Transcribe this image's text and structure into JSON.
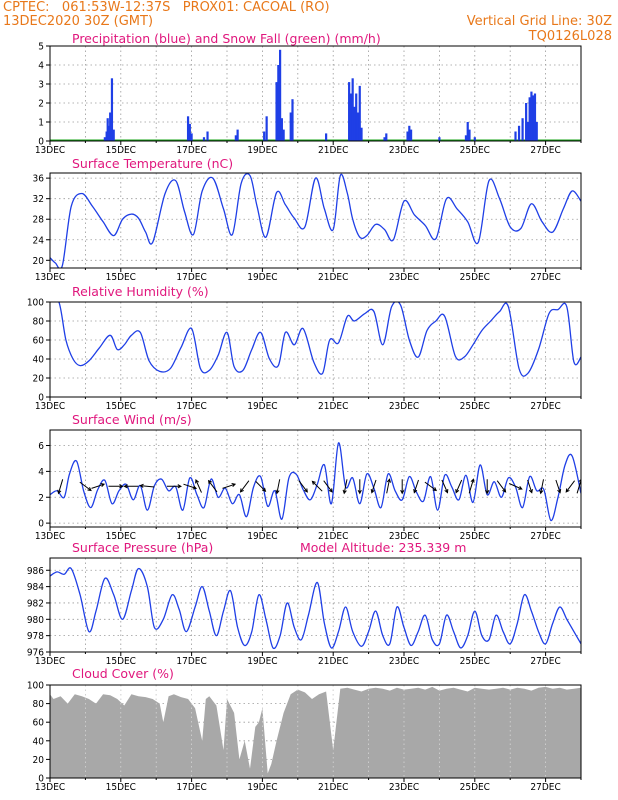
{
  "header": {
    "line1": "CPTEC:   061:53W-12:37S   PROX01: CACOAL (RO)",
    "line2_left": "13DEC2020 30Z (GMT)",
    "line2_right": "Vertical Grid Line: 30Z",
    "line3_right": "TQ0126L028"
  },
  "colors": {
    "header": "#e8781a",
    "panel_title": "#e0177d",
    "line": "#1f3fe6",
    "snow": "#19a619",
    "cloud": "#a8a8a8",
    "arrow": "#000000"
  },
  "chart_data": [
    {
      "id": "precip",
      "type": "bar",
      "title": "Precipitation (blue) and Snow Fall (green) (mm/h)",
      "x_labels": [
        "13DEC",
        "15DEC",
        "17DEC",
        "19DEC",
        "21DEC",
        "23DEC",
        "25DEC",
        "27DEC"
      ],
      "x_label_days": [
        0,
        2,
        4,
        6,
        8,
        10,
        12,
        14
      ],
      "ylim": [
        0,
        5
      ],
      "yticks": [
        0,
        1,
        2,
        3,
        4,
        5
      ],
      "x_days": [
        1.55,
        1.6,
        1.63,
        1.66,
        1.7,
        1.75,
        1.8,
        3.9,
        3.95,
        4.0,
        4.35,
        4.45,
        5.25,
        5.3,
        6.05,
        6.12,
        6.4,
        6.45,
        6.5,
        6.55,
        6.6,
        6.8,
        6.85,
        7.8,
        8.45,
        8.5,
        8.55,
        8.6,
        8.65,
        8.7,
        8.75,
        8.8,
        9.45,
        9.5,
        10.1,
        10.15,
        10.2,
        11.0,
        11.75,
        11.8,
        11.85,
        12.0,
        13.15,
        13.25,
        13.35,
        13.45,
        13.5,
        13.55,
        13.6,
        13.65,
        13.7,
        13.75
      ],
      "values": [
        0.2,
        0.5,
        1.2,
        0.8,
        1.5,
        3.3,
        0.6,
        1.3,
        0.9,
        0.4,
        0.2,
        0.5,
        0.3,
        0.6,
        0.5,
        1.3,
        3.1,
        4.0,
        4.8,
        1.2,
        0.6,
        1.5,
        2.2,
        0.4,
        3.1,
        2.5,
        3.3,
        1.8,
        2.5,
        1.5,
        2.9,
        0.7,
        0.2,
        0.4,
        0.5,
        0.8,
        0.6,
        0.2,
        0.3,
        1.0,
        0.6,
        0.2,
        0.5,
        0.8,
        1.2,
        2.0,
        1.0,
        2.3,
        2.6,
        2.4,
        2.5,
        1.0
      ],
      "snow_values": [
        0.05
      ]
    },
    {
      "id": "temp",
      "type": "line",
      "title": "Surface Temperature (nC)",
      "ylim": [
        18.5,
        37
      ],
      "yticks": [
        20,
        24,
        28,
        32,
        36
      ],
      "x_days": [
        0,
        0.15,
        0.35,
        0.6,
        0.9,
        1.2,
        1.5,
        1.8,
        2.05,
        2.3,
        2.5,
        2.7,
        2.9,
        3.25,
        3.55,
        3.8,
        4.05,
        4.3,
        4.6,
        4.9,
        5.15,
        5.4,
        5.65,
        5.85,
        6.1,
        6.4,
        6.65,
        6.9,
        7.2,
        7.5,
        7.75,
        8.0,
        8.2,
        8.4,
        8.55,
        8.75,
        8.95,
        9.2,
        9.45,
        9.7,
        10.0,
        10.3,
        10.6,
        10.9,
        11.2,
        11.5,
        11.8,
        12.1,
        12.4,
        12.7,
        13.0,
        13.3,
        13.6,
        13.9,
        14.2,
        14.5,
        14.75,
        15.0
      ],
      "values": [
        20.5,
        19.5,
        19.0,
        30.5,
        33.0,
        30.5,
        27.5,
        24.8,
        28.0,
        29.0,
        28.2,
        25.5,
        23.5,
        33.0,
        35.5,
        29.5,
        25.0,
        33.5,
        36.0,
        30.0,
        25.0,
        35.0,
        36.5,
        30.5,
        24.5,
        33.2,
        30.8,
        28.2,
        26.5,
        36.0,
        30.0,
        26.0,
        36.5,
        33.0,
        28.0,
        24.5,
        24.8,
        27.0,
        26.0,
        24.0,
        31.5,
        28.8,
        26.8,
        24.2,
        32.0,
        30.0,
        27.5,
        23.5,
        35.5,
        32.0,
        26.5,
        26.2,
        31.0,
        27.5,
        25.5,
        30.0,
        33.5,
        31.5
      ]
    },
    {
      "id": "rh",
      "type": "line",
      "title": "Relative Humidity (%)",
      "ylim": [
        0,
        100
      ],
      "yticks": [
        0,
        20,
        40,
        60,
        80,
        100
      ],
      "x_days": [
        0,
        0.25,
        0.45,
        0.65,
        0.85,
        1.1,
        1.4,
        1.7,
        1.9,
        2.1,
        2.3,
        2.55,
        2.8,
        3.1,
        3.4,
        3.7,
        4.0,
        4.25,
        4.5,
        4.75,
        5.0,
        5.2,
        5.45,
        5.7,
        5.95,
        6.2,
        6.45,
        6.65,
        6.9,
        7.15,
        7.45,
        7.7,
        7.9,
        8.15,
        8.4,
        8.6,
        8.9,
        9.15,
        9.4,
        9.65,
        9.9,
        10.15,
        10.4,
        10.65,
        10.9,
        11.15,
        11.45,
        11.7,
        11.95,
        12.2,
        12.45,
        12.7,
        12.95,
        13.25,
        13.5,
        13.8,
        14.1,
        14.35,
        14.6,
        14.8,
        15.0
      ],
      "values": [
        100,
        100,
        60,
        40,
        33,
        38,
        52,
        65,
        50,
        55,
        65,
        68,
        38,
        27,
        30,
        52,
        72,
        30,
        28,
        44,
        68,
        32,
        28,
        50,
        68,
        40,
        33,
        68,
        55,
        72,
        37,
        25,
        60,
        57,
        85,
        80,
        88,
        90,
        55,
        95,
        97,
        60,
        42,
        70,
        80,
        85,
        43,
        42,
        55,
        70,
        80,
        90,
        95,
        30,
        25,
        50,
        88,
        92,
        95,
        37,
        42
      ]
    },
    {
      "id": "wind",
      "type": "line",
      "title": "Surface Wind (m/s)",
      "ylim": [
        -0.3,
        7.2
      ],
      "yticks": [
        0,
        2,
        4,
        6
      ],
      "x_days": [
        0,
        0.2,
        0.4,
        0.55,
        0.75,
        0.95,
        1.15,
        1.35,
        1.55,
        1.75,
        1.95,
        2.15,
        2.35,
        2.55,
        2.75,
        2.95,
        3.15,
        3.35,
        3.55,
        3.75,
        3.95,
        4.15,
        4.35,
        4.55,
        4.75,
        4.95,
        5.15,
        5.35,
        5.55,
        5.75,
        5.95,
        6.15,
        6.35,
        6.55,
        6.75,
        6.95,
        7.15,
        7.35,
        7.55,
        7.75,
        7.95,
        8.15,
        8.35,
        8.55,
        8.75,
        8.95,
        9.15,
        9.35,
        9.55,
        9.75,
        9.95,
        10.15,
        10.35,
        10.55,
        10.75,
        10.95,
        11.15,
        11.35,
        11.55,
        11.75,
        11.95,
        12.15,
        12.35,
        12.55,
        12.75,
        12.95,
        13.15,
        13.35,
        13.55,
        13.75,
        13.95,
        14.15,
        14.35,
        14.55,
        14.75,
        15.0
      ],
      "values": [
        2.2,
        2.5,
        2.0,
        3.8,
        4.8,
        2.5,
        1.2,
        2.6,
        3.3,
        1.5,
        2.5,
        3.0,
        1.8,
        2.9,
        1.0,
        2.9,
        3.4,
        2.5,
        2.8,
        1.0,
        3.5,
        2.2,
        1.2,
        3.4,
        2.0,
        2.7,
        1.5,
        2.2,
        0.5,
        2.8,
        3.6,
        1.3,
        2.5,
        0.3,
        3.5,
        3.8,
        2.6,
        1.8,
        3.0,
        4.5,
        1.5,
        6.2,
        2.8,
        3.5,
        1.5,
        3.8,
        2.7,
        1.2,
        3.8,
        2.5,
        1.8,
        3.6,
        2.4,
        1.7,
        3.6,
        1.0,
        3.7,
        2.8,
        1.8,
        3.7,
        1.6,
        4.5,
        2.2,
        3.2,
        2.0,
        3.5,
        2.8,
        1.2,
        3.6,
        2.5,
        2.6,
        0.2,
        2.0,
        4.5,
        5.2,
        2.3
      ],
      "arrows": [
        {
          "day": 0.3,
          "u": -0.3,
          "v": -1.0
        },
        {
          "day": 1.0,
          "u": 0.8,
          "v": -0.6
        },
        {
          "day": 1.35,
          "u": 0.9,
          "v": 0.3
        },
        {
          "day": 1.85,
          "u": 1.0,
          "v": 0.0
        },
        {
          "day": 2.3,
          "u": -1.0,
          "v": 0.0
        },
        {
          "day": 2.75,
          "u": -1.0,
          "v": 0.1
        },
        {
          "day": 3.5,
          "u": 1.0,
          "v": 0.0
        },
        {
          "day": 3.95,
          "u": 0.9,
          "v": -0.3
        },
        {
          "day": 4.2,
          "u": -0.4,
          "v": 0.9
        },
        {
          "day": 4.6,
          "u": -0.6,
          "v": 0.8
        },
        {
          "day": 5.05,
          "u": 0.9,
          "v": 0.3
        },
        {
          "day": 5.5,
          "u": -0.6,
          "v": -0.8
        },
        {
          "day": 5.95,
          "u": 0.7,
          "v": -0.7
        },
        {
          "day": 6.45,
          "u": -0.2,
          "v": -1.0
        },
        {
          "day": 7.15,
          "u": 0.6,
          "v": -0.8
        },
        {
          "day": 7.55,
          "u": -0.7,
          "v": 0.7
        },
        {
          "day": 7.85,
          "u": 0.6,
          "v": -0.8
        },
        {
          "day": 8.35,
          "u": -0.2,
          "v": -1.0
        },
        {
          "day": 8.75,
          "u": 0.0,
          "v": -1.0
        },
        {
          "day": 9.15,
          "u": -0.3,
          "v": -0.9
        },
        {
          "day": 9.55,
          "u": 0.2,
          "v": 1.0
        },
        {
          "day": 9.95,
          "u": 0.0,
          "v": -1.0
        },
        {
          "day": 10.35,
          "u": -0.3,
          "v": -0.9
        },
        {
          "day": 10.75,
          "u": 0.8,
          "v": -0.6
        },
        {
          "day": 11.15,
          "u": 0.4,
          "v": -0.9
        },
        {
          "day": 11.55,
          "u": -0.4,
          "v": -0.9
        },
        {
          "day": 11.9,
          "u": 0.3,
          "v": 1.0
        },
        {
          "day": 12.35,
          "u": 0.0,
          "v": -1.0
        },
        {
          "day": 12.75,
          "u": 0.6,
          "v": -0.8
        },
        {
          "day": 13.15,
          "u": 0.9,
          "v": -0.4
        },
        {
          "day": 13.55,
          "u": 0.3,
          "v": -0.9
        },
        {
          "day": 13.9,
          "u": -0.2,
          "v": -1.0
        },
        {
          "day": 14.35,
          "u": 0.3,
          "v": -0.9
        },
        {
          "day": 14.7,
          "u": -0.6,
          "v": -0.8
        },
        {
          "day": 14.95,
          "u": 0.3,
          "v": 1.0
        }
      ]
    },
    {
      "id": "pres",
      "type": "line",
      "title": "Surface Pressure (hPa)",
      "subtitle": "Model Altitude: 235.339 m",
      "ylim": [
        976,
        987.5
      ],
      "yticks": [
        976,
        978,
        980,
        982,
        984,
        986
      ],
      "x_days": [
        0,
        0.2,
        0.4,
        0.6,
        0.85,
        1.1,
        1.3,
        1.55,
        1.8,
        2.05,
        2.3,
        2.5,
        2.75,
        2.95,
        3.2,
        3.45,
        3.65,
        3.85,
        4.1,
        4.3,
        4.5,
        4.7,
        4.9,
        5.1,
        5.3,
        5.5,
        5.7,
        5.9,
        6.1,
        6.3,
        6.5,
        6.7,
        6.9,
        7.1,
        7.3,
        7.55,
        7.75,
        7.95,
        8.15,
        8.35,
        8.55,
        8.8,
        9.0,
        9.2,
        9.4,
        9.6,
        9.8,
        10.0,
        10.2,
        10.4,
        10.6,
        10.8,
        11.0,
        11.2,
        11.4,
        11.6,
        11.8,
        12.0,
        12.2,
        12.4,
        12.6,
        12.8,
        13.0,
        13.2,
        13.4,
        13.6,
        13.8,
        14.0,
        14.2,
        14.4,
        14.6,
        14.8,
        15.0
      ],
      "values": [
        985.3,
        985.8,
        985.5,
        986.2,
        983.0,
        978.5,
        981.0,
        985.0,
        983.0,
        980.0,
        983.5,
        986.2,
        984.0,
        979.0,
        980.0,
        983.0,
        981.2,
        978.5,
        981.5,
        984.0,
        981.0,
        978.0,
        981.0,
        983.5,
        979.0,
        976.8,
        978.5,
        983.0,
        980.0,
        976.5,
        978.0,
        982.0,
        979.0,
        977.5,
        980.5,
        984.5,
        979.5,
        976.5,
        978.5,
        981.5,
        978.5,
        976.7,
        978.5,
        981.0,
        978.0,
        977.0,
        981.5,
        979.0,
        976.8,
        978.5,
        980.5,
        977.5,
        977.0,
        980.5,
        978.5,
        976.5,
        978.0,
        981.0,
        978.0,
        977.5,
        980.5,
        978.5,
        977.0,
        979.5,
        983.0,
        981.0,
        978.5,
        977.0,
        979.5,
        981.5,
        980.0,
        978.5,
        977.0
      ]
    },
    {
      "id": "cloud",
      "type": "area",
      "title": "Cloud Cover (%)",
      "ylim": [
        0,
        100
      ],
      "yticks": [
        0,
        20,
        40,
        60,
        80,
        100
      ],
      "x_days": [
        0,
        0.1,
        0.3,
        0.5,
        0.7,
        0.9,
        1.1,
        1.3,
        1.5,
        1.7,
        1.9,
        2.1,
        2.3,
        2.5,
        2.7,
        2.9,
        3.1,
        3.2,
        3.35,
        3.5,
        3.7,
        3.9,
        4.1,
        4.3,
        4.4,
        4.5,
        4.7,
        4.9,
        5.0,
        5.2,
        5.35,
        5.5,
        5.65,
        5.8,
        5.9,
        6.0,
        6.15,
        6.25,
        6.4,
        6.6,
        6.8,
        7.0,
        7.2,
        7.4,
        7.6,
        7.8,
        8.0,
        8.2,
        8.4,
        8.6,
        8.8,
        9.0,
        9.2,
        9.4,
        9.6,
        9.8,
        10.0,
        10.2,
        10.4,
        10.6,
        10.8,
        11.0,
        11.2,
        11.4,
        11.6,
        11.8,
        12.0,
        12.2,
        12.4,
        12.6,
        12.8,
        13.0,
        13.2,
        13.4,
        13.6,
        13.8,
        14.0,
        14.2,
        14.4,
        14.6,
        14.8,
        15.0
      ],
      "values": [
        90,
        85,
        88,
        80,
        90,
        88,
        85,
        80,
        90,
        89,
        85,
        78,
        90,
        88,
        87,
        85,
        80,
        60,
        88,
        90,
        87,
        85,
        75,
        40,
        85,
        88,
        78,
        30,
        85,
        70,
        20,
        40,
        10,
        55,
        60,
        75,
        5,
        15,
        40,
        70,
        90,
        95,
        92,
        85,
        90,
        93,
        30,
        96,
        97,
        95,
        93,
        96,
        97,
        96,
        94,
        97,
        95,
        96,
        97,
        95,
        98,
        94,
        96,
        97,
        95,
        93,
        97,
        96,
        95,
        96,
        97,
        95,
        97,
        96,
        94,
        97,
        98,
        96,
        97,
        95,
        96,
        97
      ]
    }
  ]
}
